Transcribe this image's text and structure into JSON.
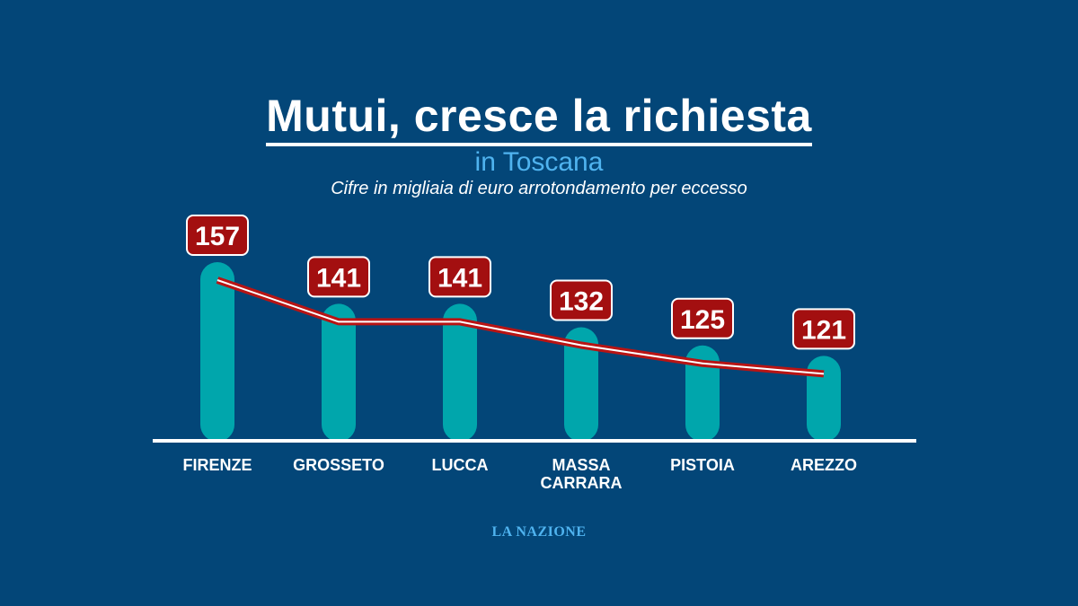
{
  "header": {
    "title": "Mutui, cresce la richiesta",
    "subtitle": "in Toscana",
    "note": "Cifre in migliaia di euro arrotondamento per eccesso"
  },
  "footer": {
    "source": "LA NAZIONE"
  },
  "colors": {
    "background": "#034678",
    "bar": "#00a6ac",
    "badge": "#a30f10",
    "line": "#b81414",
    "accent": "#4fb3ef"
  },
  "chart_data": {
    "type": "bar",
    "categories": [
      "FIRENZE",
      "GROSSETO",
      "LUCCA",
      "MASSA CARRARA",
      "PISTOIA",
      "AREZZO"
    ],
    "values": [
      157,
      141,
      141,
      132,
      125,
      121
    ],
    "title": "Mutui, cresce la richiesta",
    "subtitle": "in Toscana",
    "xlabel": "",
    "ylabel": "",
    "overlay": "line",
    "grid": false,
    "legend": "none"
  }
}
